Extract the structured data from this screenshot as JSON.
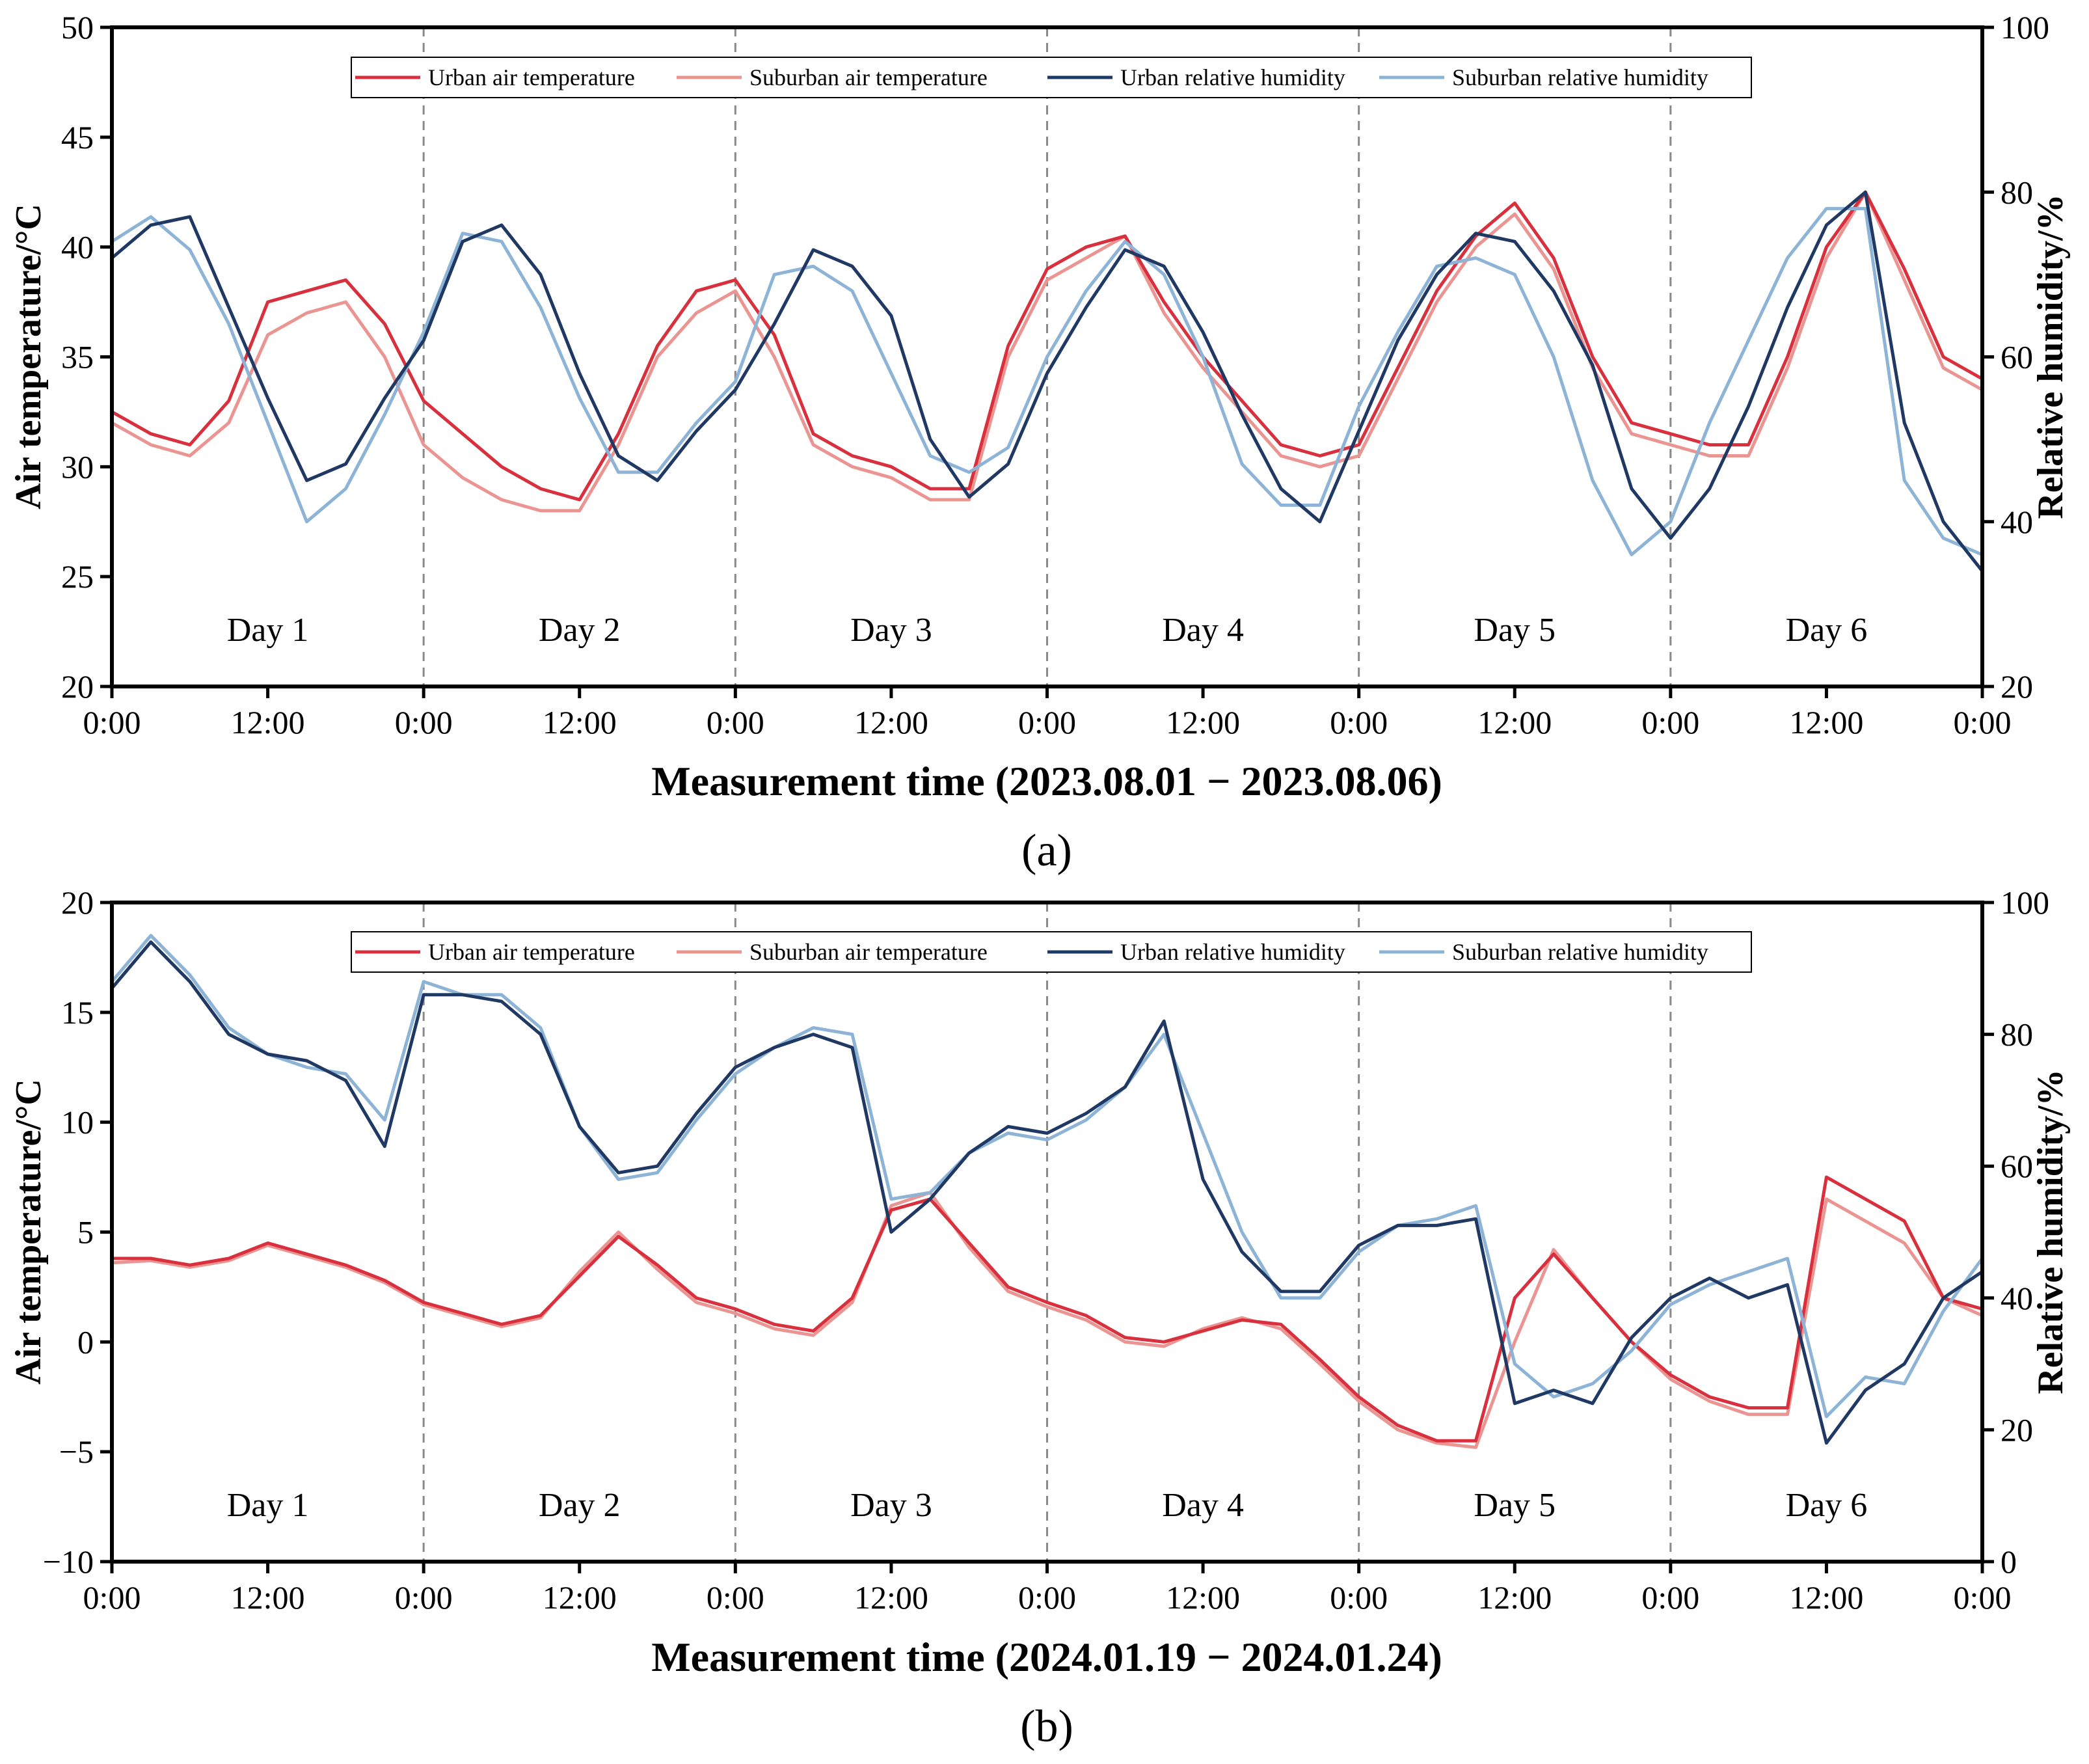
{
  "figure": {
    "panels": [
      {
        "panel_label": "(a)",
        "xlabel": "Measurement time (2023.08.01 − 2023.08.06)",
        "left_ylabel": "Air temperature/°C",
        "right_ylabel": "Relative humidity/%"
      },
      {
        "panel_label": "(b)",
        "xlabel": "Measurement time (2024.01.19 − 2024.01.24)",
        "left_ylabel": "Air temperature/°C",
        "right_ylabel": "Relative humidity/%"
      }
    ]
  },
  "chart_data": [
    {
      "type": "line",
      "title": "",
      "panel_label": "(a)",
      "xlabel": "Measurement time (2023.08.01 − 2023.08.06)",
      "ylabel": "Air temperature/°C",
      "y2label": "Relative humidity/%",
      "xlim_hours": [
        0,
        144
      ],
      "ylim": [
        20,
        50
      ],
      "y2lim": [
        20,
        100
      ],
      "x_ticks_hours": [
        0,
        12,
        24,
        36,
        48,
        60,
        72,
        84,
        96,
        108,
        120,
        132,
        144
      ],
      "x_tick_labels": [
        "0:00",
        "12:00",
        "0:00",
        "12:00",
        "0:00",
        "12:00",
        "0:00",
        "12:00",
        "0:00",
        "12:00",
        "0:00",
        "12:00",
        "0:00"
      ],
      "y_ticks": [
        20,
        25,
        30,
        35,
        40,
        45,
        50
      ],
      "y2_ticks": [
        20,
        40,
        60,
        80,
        100
      ],
      "day_dividers_hours": [
        24,
        48,
        72,
        96,
        120
      ],
      "day_labels": [
        "Day 1",
        "Day 2",
        "Day 3",
        "Day 4",
        "Day 5",
        "Day 6"
      ],
      "legend_position": "top-center",
      "x_hours": [
        0,
        3,
        6,
        9,
        12,
        15,
        18,
        21,
        24,
        27,
        30,
        33,
        36,
        39,
        42,
        45,
        48,
        51,
        54,
        57,
        60,
        63,
        66,
        69,
        72,
        75,
        78,
        81,
        84,
        87,
        90,
        93,
        96,
        99,
        102,
        105,
        108,
        111,
        114,
        117,
        120,
        123,
        126,
        129,
        132,
        135,
        138,
        141,
        144
      ],
      "series": [
        {
          "name": "Urban air temperature",
          "axis": "left",
          "color": "#d9303e",
          "values": [
            32.5,
            31.5,
            31.0,
            33.0,
            37.5,
            38.0,
            38.5,
            36.5,
            33.0,
            31.5,
            30.0,
            29.0,
            28.5,
            31.5,
            35.5,
            38.0,
            38.5,
            36.0,
            31.5,
            30.5,
            30.0,
            29.0,
            29.0,
            35.5,
            39.0,
            40.0,
            40.5,
            37.5,
            35.0,
            33.0,
            31.0,
            30.5,
            31.0,
            34.5,
            38.0,
            40.5,
            42.0,
            39.5,
            35.0,
            32.0,
            31.5,
            31.0,
            31.0,
            35.0,
            40.0,
            42.5,
            39.0,
            35.0,
            34.0
          ]
        },
        {
          "name": "Suburban air temperature",
          "axis": "left",
          "color": "#eb9593",
          "values": [
            32.0,
            31.0,
            30.5,
            32.0,
            36.0,
            37.0,
            37.5,
            35.0,
            31.0,
            29.5,
            28.5,
            28.0,
            28.0,
            31.0,
            35.0,
            37.0,
            38.0,
            35.0,
            31.0,
            30.0,
            29.5,
            28.5,
            28.5,
            35.0,
            38.5,
            39.5,
            40.5,
            37.0,
            34.5,
            32.5,
            30.5,
            30.0,
            30.5,
            34.0,
            37.5,
            40.0,
            41.5,
            39.0,
            34.5,
            31.5,
            31.0,
            30.5,
            30.5,
            34.5,
            39.5,
            42.5,
            38.5,
            34.5,
            33.5
          ]
        },
        {
          "name": "Urban relative humidity",
          "axis": "right",
          "color": "#1f3864",
          "values": [
            72,
            76,
            77,
            66,
            55,
            45,
            47,
            55,
            62,
            74,
            76,
            70,
            58,
            48,
            45,
            51,
            56,
            64,
            73,
            71,
            65,
            50,
            43,
            47,
            58,
            66,
            73,
            71,
            63,
            53,
            44,
            40,
            51,
            62,
            70,
            75,
            74,
            68,
            59,
            44,
            38,
            44,
            54,
            66,
            76,
            80,
            52,
            40,
            34
          ]
        },
        {
          "name": "Suburban relative humidity",
          "axis": "right",
          "color": "#8db4d6",
          "values": [
            74,
            77,
            73,
            64,
            52,
            40,
            44,
            53,
            63,
            75,
            74,
            66,
            55,
            46,
            46,
            52,
            57,
            70,
            71,
            68,
            58,
            48,
            46,
            49,
            60,
            68,
            74,
            70,
            60,
            47,
            42,
            42,
            54,
            63,
            71,
            72,
            70,
            60,
            45,
            36,
            40,
            52,
            62,
            72,
            78,
            78,
            45,
            38,
            36
          ]
        }
      ]
    },
    {
      "type": "line",
      "title": "",
      "panel_label": "(b)",
      "xlabel": "Measurement time (2024.01.19 − 2024.01.24)",
      "ylabel": "Air temperature/°C",
      "y2label": "Relative humidity/%",
      "xlim_hours": [
        0,
        144
      ],
      "ylim": [
        -10,
        20
      ],
      "y2lim": [
        0,
        100
      ],
      "x_ticks_hours": [
        0,
        12,
        24,
        36,
        48,
        60,
        72,
        84,
        96,
        108,
        120,
        132,
        144
      ],
      "x_tick_labels": [
        "0:00",
        "12:00",
        "0:00",
        "12:00",
        "0:00",
        "12:00",
        "0:00",
        "12:00",
        "0:00",
        "12:00",
        "0:00",
        "12:00",
        "0:00"
      ],
      "y_ticks": [
        -10,
        -5,
        0,
        5,
        10,
        15,
        20
      ],
      "y2_ticks": [
        0,
        20,
        40,
        60,
        80,
        100
      ],
      "day_dividers_hours": [
        24,
        48,
        72,
        96,
        120
      ],
      "day_labels": [
        "Day 1",
        "Day 2",
        "Day 3",
        "Day 4",
        "Day 5",
        "Day 6"
      ],
      "legend_position": "top-center",
      "x_hours": [
        0,
        3,
        6,
        9,
        12,
        15,
        18,
        21,
        24,
        27,
        30,
        33,
        36,
        39,
        42,
        45,
        48,
        51,
        54,
        57,
        60,
        63,
        66,
        69,
        72,
        75,
        78,
        81,
        84,
        87,
        90,
        93,
        96,
        99,
        102,
        105,
        108,
        111,
        114,
        117,
        120,
        123,
        126,
        129,
        132,
        135,
        138,
        141,
        144
      ],
      "series": [
        {
          "name": "Urban air temperature",
          "axis": "left",
          "color": "#d9303e",
          "values": [
            3.8,
            3.8,
            3.5,
            3.8,
            4.5,
            4.0,
            3.5,
            2.8,
            1.8,
            1.3,
            0.8,
            1.2,
            3.0,
            4.8,
            3.5,
            2.0,
            1.5,
            0.8,
            0.5,
            2.0,
            6.0,
            6.5,
            4.5,
            2.5,
            1.8,
            1.2,
            0.2,
            0.0,
            0.5,
            1.0,
            0.8,
            -0.8,
            -2.5,
            -3.8,
            -4.5,
            -4.5,
            2.0,
            4.0,
            2.0,
            0.0,
            -1.5,
            -2.5,
            -3.0,
            -3.0,
            7.5,
            6.5,
            5.5,
            2.0,
            1.5
          ]
        },
        {
          "name": "Suburban air temperature",
          "axis": "left",
          "color": "#eb9593",
          "values": [
            3.6,
            3.7,
            3.4,
            3.7,
            4.4,
            3.9,
            3.4,
            2.7,
            1.7,
            1.2,
            0.7,
            1.1,
            3.2,
            5.0,
            3.3,
            1.8,
            1.3,
            0.6,
            0.3,
            1.8,
            6.2,
            6.8,
            4.3,
            2.3,
            1.6,
            1.0,
            0.0,
            -0.2,
            0.6,
            1.1,
            0.6,
            -1.0,
            -2.7,
            -4.0,
            -4.6,
            -4.8,
            0.0,
            4.2,
            2.0,
            0.0,
            -1.7,
            -2.7,
            -3.3,
            -3.3,
            6.5,
            5.5,
            4.5,
            2.0,
            1.2
          ]
        },
        {
          "name": "Urban relative humidity",
          "axis": "right",
          "color": "#1f3864",
          "values": [
            87,
            94,
            88,
            80,
            77,
            76,
            73,
            63,
            86,
            86,
            85,
            80,
            66,
            59,
            60,
            68,
            75,
            78,
            80,
            78,
            50,
            55,
            62,
            66,
            65,
            68,
            72,
            82,
            58,
            47,
            41,
            41,
            48,
            51,
            51,
            52,
            24,
            26,
            24,
            34,
            40,
            43,
            40,
            42,
            18,
            26,
            30,
            40,
            44
          ]
        },
        {
          "name": "Suburban relative humidity",
          "axis": "right",
          "color": "#8db4d6",
          "values": [
            88,
            95,
            89,
            81,
            77,
            75,
            74,
            67,
            88,
            86,
            86,
            81,
            66,
            58,
            59,
            67,
            74,
            78,
            81,
            80,
            55,
            56,
            62,
            65,
            64,
            67,
            72,
            80,
            65,
            50,
            40,
            40,
            47,
            51,
            52,
            54,
            30,
            25,
            27,
            32,
            39,
            42,
            44,
            46,
            22,
            28,
            27,
            38,
            46
          ]
        }
      ]
    }
  ]
}
